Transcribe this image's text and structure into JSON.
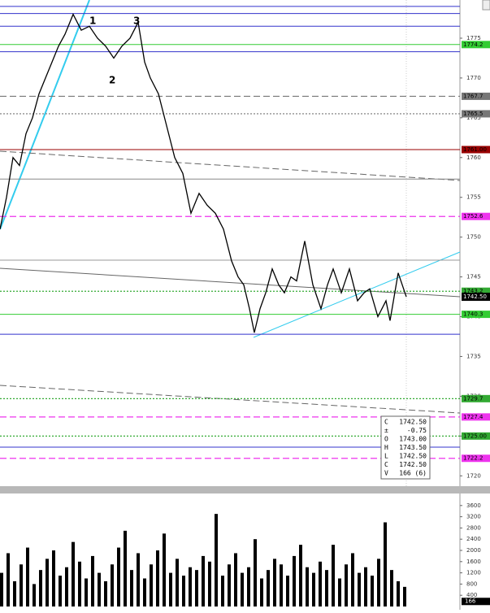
{
  "chart_data": [
    {
      "type": "line",
      "color": "#000000",
      "x": [
        0,
        8,
        16,
        24,
        32,
        40,
        48,
        56,
        64,
        72,
        80,
        90,
        100,
        110,
        120,
        130,
        140,
        150,
        160,
        170,
        178,
        185,
        195,
        205,
        215,
        225,
        235,
        245,
        255,
        265,
        275,
        285,
        293,
        300,
        307,
        313,
        320,
        327,
        335,
        343,
        350,
        358,
        365,
        375,
        385,
        395,
        403,
        410,
        420,
        430,
        440,
        448,
        455,
        465,
        475,
        480,
        490,
        500
      ],
      "values": [
        1751,
        1755,
        1760,
        1759,
        1763,
        1765,
        1768,
        1770,
        1772,
        1774,
        1775.5,
        1778,
        1776,
        1776.5,
        1775,
        1774,
        1772.5,
        1774,
        1775,
        1777,
        1772,
        1770,
        1768,
        1764,
        1760,
        1758,
        1753,
        1755.5,
        1754,
        1753,
        1751,
        1747,
        1745,
        1744,
        1741,
        1738,
        1741,
        1743,
        1746,
        1744,
        1743,
        1745,
        1744.5,
        1749.5,
        1744,
        1741,
        1744,
        1746,
        1743,
        1746,
        1742,
        1743,
        1743.5,
        1740,
        1742,
        1739.5,
        1745.5,
        1742.5
      ],
      "xlim": [
        0,
        566
      ],
      "ylim": [
        1718.7,
        1779.8
      ],
      "yticks": [
        1720,
        1725,
        1730,
        1735,
        1740,
        1745,
        1750,
        1755,
        1760,
        1765,
        1770,
        1775
      ],
      "levels": [
        {
          "value": 1779,
          "color": "#3333cc",
          "style": "solid"
        },
        {
          "value": 1778.1,
          "color": "#3333cc",
          "style": "solid"
        },
        {
          "value": 1776.5,
          "color": "#3333cc",
          "style": "solid"
        },
        {
          "value": 1774.2,
          "label": "1774.2",
          "color": "#33cc33",
          "style": "solid"
        },
        {
          "value": 1773.3,
          "color": "#3333cc",
          "style": "solid"
        },
        {
          "value": 1767.7,
          "label": "1767.7",
          "color": "#777777",
          "style": "dashed"
        },
        {
          "value": 1765.5,
          "label": "1765.5",
          "color": "#777777",
          "style": "dotted"
        },
        {
          "value": 1761,
          "label": "1761.00",
          "color": "#990000",
          "style": "solid"
        },
        {
          "value": 1757.3,
          "color": "#888888",
          "style": "solid"
        },
        {
          "value": 1752.6,
          "label": "1752.6",
          "color": "#ee33ee",
          "style": "dashed"
        },
        {
          "value": 1747.1,
          "color": "#999999",
          "style": "solid"
        },
        {
          "value": 1743.2,
          "label": "1743.2",
          "color": "#33aa33",
          "style": "dotted"
        },
        {
          "value": 1740.3,
          "label": "1740.3",
          "color": "#33cc33",
          "style": "solid"
        },
        {
          "value": 1737.8,
          "color": "#3333cc",
          "style": "solid"
        },
        {
          "value": 1729.7,
          "label": "1729.7",
          "color": "#33aa33",
          "style": "dotted"
        },
        {
          "value": 1727.4,
          "label": "1727.4",
          "color": "#ee33ee",
          "style": "dashed"
        },
        {
          "value": 1725,
          "label": "1725.00",
          "color": "#33aa33",
          "style": "dotted"
        },
        {
          "value": 1723.6,
          "color": "#3333cc",
          "style": "solid"
        },
        {
          "value": 1722.2,
          "label": "1722.2",
          "color": "#ee33ee",
          "style": "dashed"
        }
      ],
      "last_price": 1742.5,
      "last_price_label": "1742.50",
      "annotations": [
        "1",
        "2",
        "3"
      ],
      "info": {
        "keys": [
          "C",
          "±",
          "O",
          "H",
          "L",
          "C",
          "V"
        ],
        "values": [
          "1742.50",
          "-0.75",
          "1743.00",
          "1743.50",
          "1742.50",
          "1742.50",
          "166 (6)"
        ]
      }
    },
    {
      "type": "volume",
      "color": "#000000",
      "x": [
        2,
        10,
        18,
        26,
        34,
        42,
        50,
        58,
        66,
        74,
        82,
        90,
        98,
        106,
        114,
        122,
        130,
        138,
        146,
        154,
        162,
        170,
        178,
        186,
        194,
        202,
        210,
        218,
        226,
        234,
        242,
        250,
        258,
        266,
        274,
        282,
        290,
        298,
        306,
        314,
        322,
        330,
        338,
        346,
        354,
        362,
        370,
        378,
        386,
        394,
        402,
        410,
        418,
        426,
        434,
        442,
        450,
        458,
        466,
        474,
        482,
        490,
        498
      ],
      "values": [
        1200,
        1900,
        900,
        1500,
        2100,
        800,
        1300,
        1700,
        2000,
        1100,
        1400,
        2300,
        1600,
        1000,
        1800,
        1200,
        900,
        1500,
        2100,
        2700,
        1300,
        1900,
        1000,
        1500,
        2000,
        2600,
        1200,
        1700,
        1100,
        1400,
        1300,
        1800,
        1600,
        3300,
        1100,
        1500,
        1900,
        1200,
        1400,
        2400,
        1000,
        1300,
        1700,
        1500,
        1100,
        1800,
        2200,
        1400,
        1200,
        1600,
        1300,
        2200,
        1000,
        1500,
        1900,
        1200,
        1400,
        1100,
        1700,
        3000,
        1300,
        900,
        700
      ],
      "xlim": [
        0,
        566
      ],
      "ylim": [
        0,
        4000
      ],
      "yticks": [
        400,
        800,
        1200,
        1600,
        2000,
        2400,
        2800,
        3200,
        3600
      ],
      "last_value": 166
    }
  ]
}
